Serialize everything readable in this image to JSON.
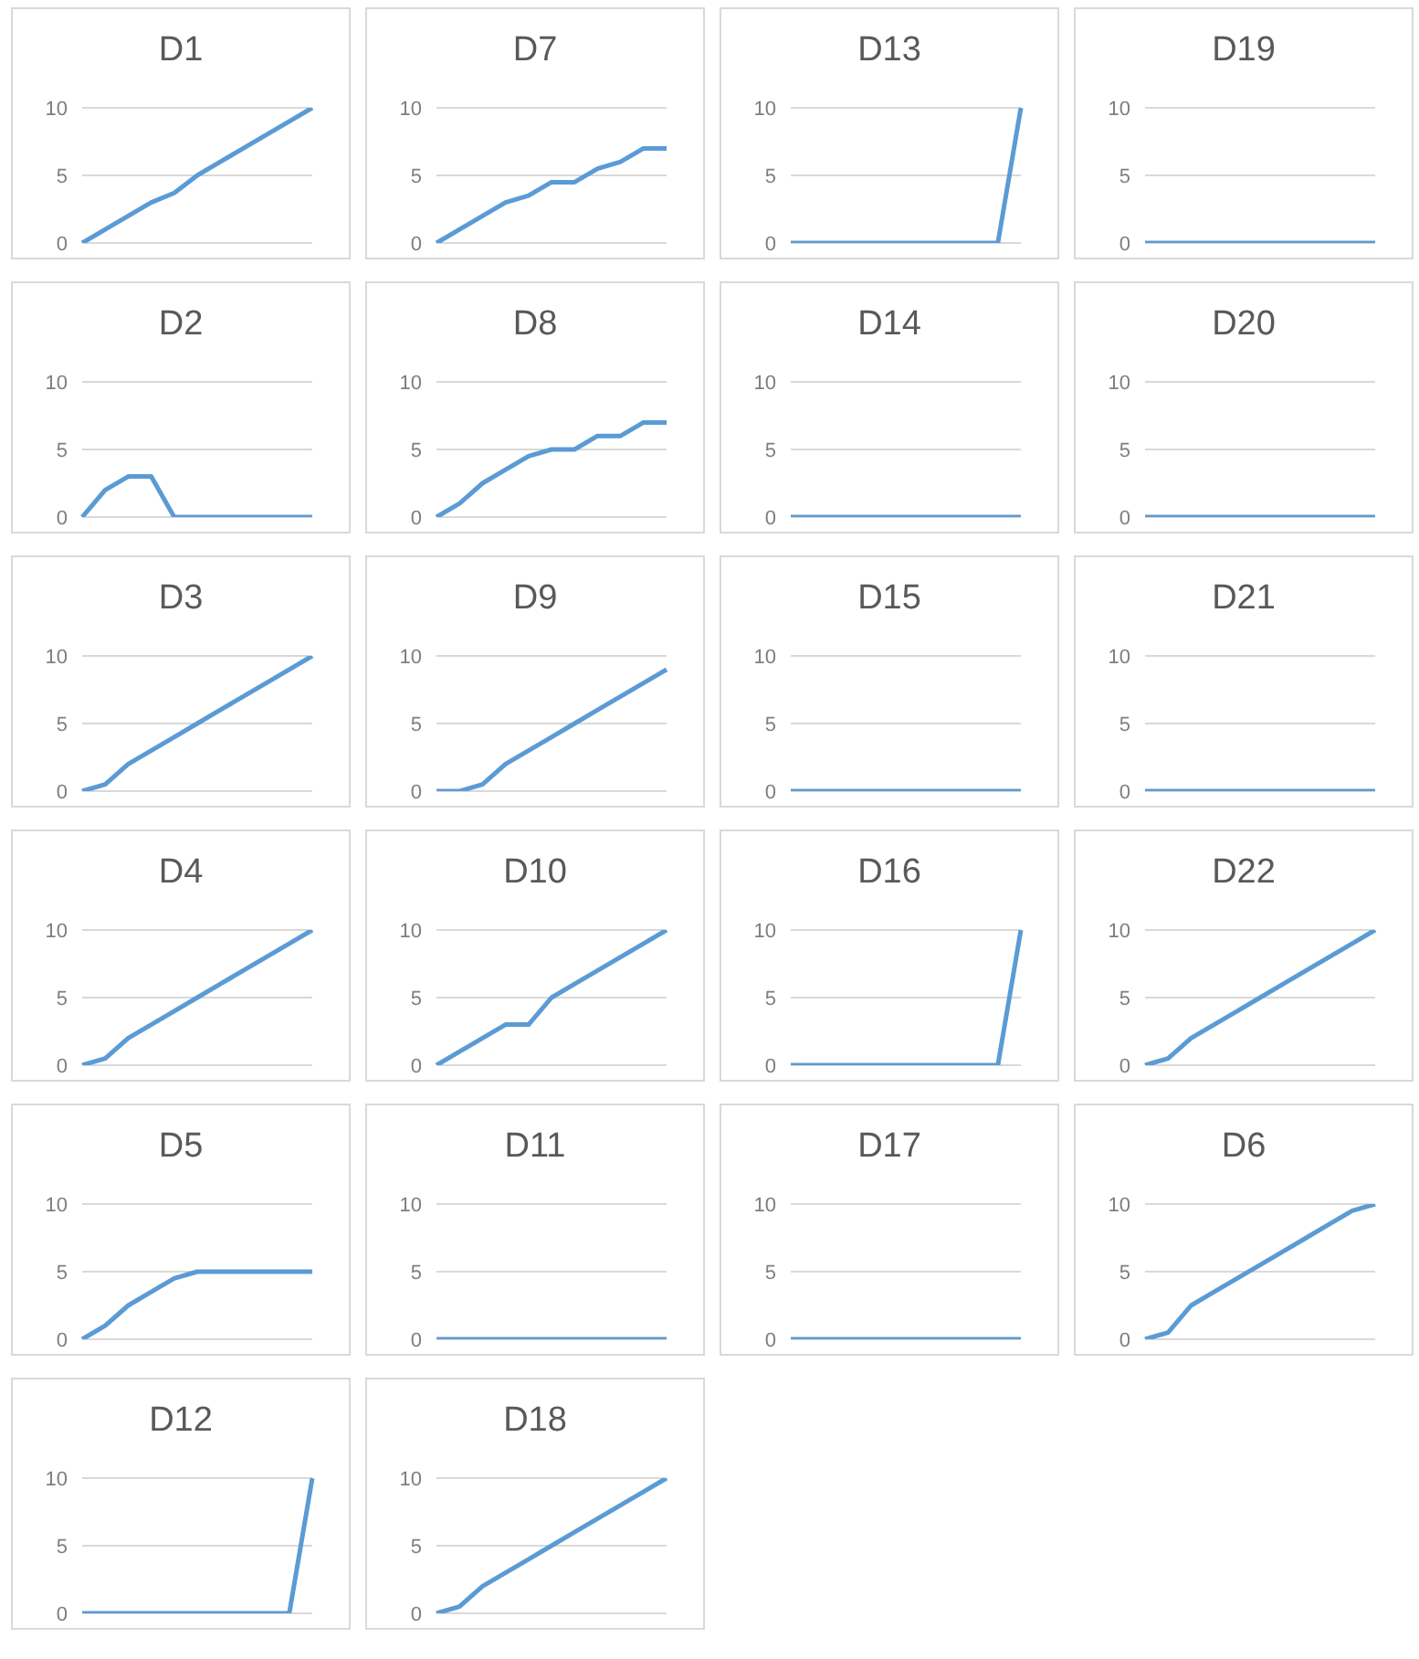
{
  "chart_data": [
    {
      "type": "line",
      "title": "D1",
      "categories": [
        null,
        null,
        null,
        null,
        null,
        null,
        null,
        null,
        null,
        null,
        null
      ],
      "values": [
        0,
        1,
        2,
        3,
        3.7,
        5,
        6,
        7,
        8,
        9,
        10
      ],
      "color": "#5b9bd5",
      "ylim": [
        0,
        10
      ],
      "yticks": [
        0,
        5,
        10
      ],
      "grid": "y",
      "tick_labels": "y"
    },
    {
      "type": "line",
      "title": "D7",
      "categories": [
        null,
        null,
        null,
        null,
        null,
        null,
        null,
        null,
        null,
        null,
        null
      ],
      "values": [
        0,
        1,
        2,
        3,
        3.5,
        4.5,
        4.5,
        5.5,
        6,
        7,
        7
      ],
      "color": "#5b9bd5",
      "ylim": [
        0,
        10
      ],
      "yticks": [
        0,
        5,
        10
      ],
      "grid": "y",
      "tick_labels": "y"
    },
    {
      "type": "line",
      "title": "D13",
      "categories": [
        null,
        null,
        null,
        null,
        null,
        null,
        null,
        null,
        null,
        null,
        null
      ],
      "values": [
        0,
        0,
        0,
        0,
        0,
        0,
        0,
        0,
        0,
        0,
        10
      ],
      "color": "#5b9bd5",
      "ylim": [
        0,
        10
      ],
      "yticks": [
        0,
        5,
        10
      ],
      "grid": "y",
      "tick_labels": "y"
    },
    {
      "type": "line",
      "title": "D19",
      "categories": [
        null,
        null,
        null,
        null,
        null,
        null,
        null,
        null,
        null,
        null,
        null
      ],
      "values": [
        0,
        0,
        0,
        0,
        0,
        0,
        0,
        0,
        0,
        0,
        0
      ],
      "color": "#5b9bd5",
      "ylim": [
        0,
        10
      ],
      "yticks": [
        0,
        5,
        10
      ],
      "grid": "y",
      "tick_labels": "y"
    },
    {
      "type": "line",
      "title": "D2",
      "categories": [
        null,
        null,
        null,
        null,
        null,
        null,
        null,
        null,
        null,
        null,
        null
      ],
      "values": [
        0,
        2,
        3,
        3,
        0,
        0,
        0,
        0,
        0,
        0,
        0
      ],
      "color": "#5b9bd5",
      "ylim": [
        0,
        10
      ],
      "yticks": [
        0,
        5,
        10
      ],
      "grid": "y",
      "tick_labels": "y"
    },
    {
      "type": "line",
      "title": "D8",
      "categories": [
        null,
        null,
        null,
        null,
        null,
        null,
        null,
        null,
        null,
        null,
        null
      ],
      "values": [
        0,
        1,
        2.5,
        3.5,
        4.5,
        5,
        5,
        6,
        6,
        7,
        7
      ],
      "color": "#5b9bd5",
      "ylim": [
        0,
        10
      ],
      "yticks": [
        0,
        5,
        10
      ],
      "grid": "y",
      "tick_labels": "y"
    },
    {
      "type": "line",
      "title": "D14",
      "categories": [
        null,
        null,
        null,
        null,
        null,
        null,
        null,
        null,
        null,
        null,
        null
      ],
      "values": [
        0,
        0,
        0,
        0,
        0,
        0,
        0,
        0,
        0,
        0,
        0
      ],
      "color": "#5b9bd5",
      "ylim": [
        0,
        10
      ],
      "yticks": [
        0,
        5,
        10
      ],
      "grid": "y",
      "tick_labels": "y"
    },
    {
      "type": "line",
      "title": "D20",
      "categories": [
        null,
        null,
        null,
        null,
        null,
        null,
        null,
        null,
        null,
        null,
        null
      ],
      "values": [
        0,
        0,
        0,
        0,
        0,
        0,
        0,
        0,
        0,
        0,
        0
      ],
      "color": "#5b9bd5",
      "ylim": [
        0,
        10
      ],
      "yticks": [
        0,
        5,
        10
      ],
      "grid": "y",
      "tick_labels": "y"
    },
    {
      "type": "line",
      "title": "D3",
      "categories": [
        null,
        null,
        null,
        null,
        null,
        null,
        null,
        null,
        null,
        null,
        null
      ],
      "values": [
        0,
        0.5,
        2,
        3,
        4,
        5,
        6,
        7,
        8,
        9,
        10
      ],
      "color": "#5b9bd5",
      "ylim": [
        0,
        10
      ],
      "yticks": [
        0,
        5,
        10
      ],
      "grid": "y",
      "tick_labels": "y"
    },
    {
      "type": "line",
      "title": "D9",
      "categories": [
        null,
        null,
        null,
        null,
        null,
        null,
        null,
        null,
        null,
        null,
        null
      ],
      "values": [
        0,
        0,
        0.5,
        2,
        3,
        4,
        5,
        6,
        7,
        8,
        9
      ],
      "color": "#5b9bd5",
      "ylim": [
        0,
        10
      ],
      "yticks": [
        0,
        5,
        10
      ],
      "grid": "y",
      "tick_labels": "y"
    },
    {
      "type": "line",
      "title": "D15",
      "categories": [
        null,
        null,
        null,
        null,
        null,
        null,
        null,
        null,
        null,
        null,
        null
      ],
      "values": [
        0,
        0,
        0,
        0,
        0,
        0,
        0,
        0,
        0,
        0,
        0
      ],
      "color": "#5b9bd5",
      "ylim": [
        0,
        10
      ],
      "yticks": [
        0,
        5,
        10
      ],
      "grid": "y",
      "tick_labels": "y"
    },
    {
      "type": "line",
      "title": "D21",
      "categories": [
        null,
        null,
        null,
        null,
        null,
        null,
        null,
        null,
        null,
        null,
        null
      ],
      "values": [
        0,
        0,
        0,
        0,
        0,
        0,
        0,
        0,
        0,
        0,
        0
      ],
      "color": "#5b9bd5",
      "ylim": [
        0,
        10
      ],
      "yticks": [
        0,
        5,
        10
      ],
      "grid": "y",
      "tick_labels": "y"
    },
    {
      "type": "line",
      "title": "D4",
      "categories": [
        null,
        null,
        null,
        null,
        null,
        null,
        null,
        null,
        null,
        null,
        null
      ],
      "values": [
        0,
        0.5,
        2,
        3,
        4,
        5,
        6,
        7,
        8,
        9,
        10
      ],
      "color": "#5b9bd5",
      "ylim": [
        0,
        10
      ],
      "yticks": [
        0,
        5,
        10
      ],
      "grid": "y",
      "tick_labels": "y"
    },
    {
      "type": "line",
      "title": "D10",
      "categories": [
        null,
        null,
        null,
        null,
        null,
        null,
        null,
        null,
        null,
        null,
        null
      ],
      "values": [
        0,
        1,
        2,
        3,
        3,
        5,
        6,
        7,
        8,
        9,
        10
      ],
      "color": "#5b9bd5",
      "ylim": [
        0,
        10
      ],
      "yticks": [
        0,
        5,
        10
      ],
      "grid": "y",
      "tick_labels": "y"
    },
    {
      "type": "line",
      "title": "D16",
      "categories": [
        null,
        null,
        null,
        null,
        null,
        null,
        null,
        null,
        null,
        null,
        null
      ],
      "values": [
        0,
        0,
        0,
        0,
        0,
        0,
        0,
        0,
        0,
        0,
        10
      ],
      "color": "#5b9bd5",
      "ylim": [
        0,
        10
      ],
      "yticks": [
        0,
        5,
        10
      ],
      "grid": "y",
      "tick_labels": "y"
    },
    {
      "type": "line",
      "title": "D22",
      "categories": [
        null,
        null,
        null,
        null,
        null,
        null,
        null,
        null,
        null,
        null,
        null
      ],
      "values": [
        0,
        0.5,
        2,
        3,
        4,
        5,
        6,
        7,
        8,
        9,
        10
      ],
      "color": "#5b9bd5",
      "ylim": [
        0,
        10
      ],
      "yticks": [
        0,
        5,
        10
      ],
      "grid": "y",
      "tick_labels": "y"
    },
    {
      "type": "line",
      "title": "D5",
      "categories": [
        null,
        null,
        null,
        null,
        null,
        null,
        null,
        null,
        null,
        null,
        null
      ],
      "values": [
        0,
        1,
        2.5,
        3.5,
        4.5,
        5,
        5,
        5,
        5,
        5,
        5
      ],
      "color": "#5b9bd5",
      "ylim": [
        0,
        10
      ],
      "yticks": [
        0,
        5,
        10
      ],
      "grid": "y",
      "tick_labels": "y"
    },
    {
      "type": "line",
      "title": "D11",
      "categories": [
        null,
        null,
        null,
        null,
        null,
        null,
        null,
        null,
        null,
        null,
        null
      ],
      "values": [
        0,
        0,
        0,
        0,
        0,
        0,
        0,
        0,
        0,
        0,
        0
      ],
      "color": "#5b9bd5",
      "ylim": [
        0,
        10
      ],
      "yticks": [
        0,
        5,
        10
      ],
      "grid": "y",
      "tick_labels": "y"
    },
    {
      "type": "line",
      "title": "D17",
      "categories": [
        null,
        null,
        null,
        null,
        null,
        null,
        null,
        null,
        null,
        null,
        null
      ],
      "values": [
        0,
        0,
        0,
        0,
        0,
        0,
        0,
        0,
        0,
        0,
        0
      ],
      "color": "#5b9bd5",
      "ylim": [
        0,
        10
      ],
      "yticks": [
        0,
        5,
        10
      ],
      "grid": "y",
      "tick_labels": "y"
    },
    {
      "type": "line",
      "title": "D6",
      "categories": [
        null,
        null,
        null,
        null,
        null,
        null,
        null,
        null,
        null,
        null,
        null
      ],
      "values": [
        0,
        0.5,
        2.5,
        3.5,
        4.5,
        5.5,
        6.5,
        7.5,
        8.5,
        9.5,
        10
      ],
      "color": "#5b9bd5",
      "ylim": [
        0,
        10
      ],
      "yticks": [
        0,
        5,
        10
      ],
      "grid": "y",
      "tick_labels": "y"
    },
    {
      "type": "line",
      "title": "D12",
      "categories": [
        null,
        null,
        null,
        null,
        null,
        null,
        null,
        null,
        null,
        null,
        null
      ],
      "values": [
        0,
        0,
        0,
        0,
        0,
        0,
        0,
        0,
        0,
        0,
        10
      ],
      "color": "#5b9bd5",
      "ylim": [
        0,
        10
      ],
      "yticks": [
        0,
        5,
        10
      ],
      "grid": "y",
      "tick_labels": "y"
    },
    {
      "type": "line",
      "title": "D18",
      "categories": [
        null,
        null,
        null,
        null,
        null,
        null,
        null,
        null,
        null,
        null,
        null
      ],
      "values": [
        0,
        0.5,
        2,
        3,
        4,
        5,
        6,
        7,
        8,
        9,
        10
      ],
      "color": "#5b9bd5",
      "ylim": [
        0,
        10
      ],
      "yticks": [
        0,
        5,
        10
      ],
      "grid": "y",
      "tick_labels": "y"
    }
  ]
}
